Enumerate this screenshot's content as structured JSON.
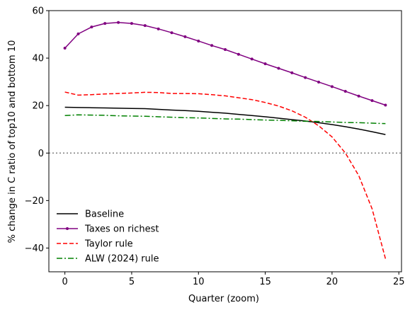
{
  "chart_data": {
    "type": "line",
    "title": "",
    "xlabel": "Quarter (zoom)",
    "ylabel": "% change in C ratio of top10 and bottom 10",
    "xlim": [
      -1.2,
      25.2
    ],
    "ylim": [
      -50,
      60
    ],
    "xticks": [
      0,
      5,
      10,
      15,
      20,
      25
    ],
    "yticks": [
      -40,
      -20,
      0,
      20,
      40,
      60
    ],
    "grid": false,
    "legend_position": "lower-left",
    "reference_line": {
      "y": 0,
      "style": "dotted",
      "color": "#808080"
    },
    "x": [
      0,
      1,
      2,
      3,
      4,
      5,
      6,
      7,
      8,
      9,
      10,
      11,
      12,
      13,
      14,
      15,
      16,
      17,
      18,
      19,
      20,
      21,
      22,
      23,
      24
    ],
    "series": [
      {
        "name": "Baseline",
        "color": "#000000",
        "style": "solid",
        "marker": "none",
        "values": [
          19.3,
          19.2,
          19.1,
          19.0,
          18.9,
          18.8,
          18.7,
          18.4,
          18.1,
          17.9,
          17.6,
          17.2,
          16.8,
          16.3,
          15.8,
          15.3,
          14.7,
          14.1,
          13.5,
          12.8,
          12.0,
          11.1,
          10.1,
          9.0,
          7.8
        ]
      },
      {
        "name": "Taxes on richest",
        "color": "#800080",
        "style": "solid",
        "marker": "dot",
        "values": [
          44.2,
          50.2,
          53.1,
          54.6,
          55.0,
          54.6,
          53.7,
          52.3,
          50.7,
          49.0,
          47.2,
          45.3,
          43.6,
          41.6,
          39.6,
          37.6,
          35.7,
          33.8,
          31.8,
          29.9,
          28.0,
          26.0,
          24.0,
          22.1,
          20.2
        ]
      },
      {
        "name": "Taylor rule",
        "color": "#ff0000",
        "style": "dashed",
        "marker": "none",
        "values": [
          25.7,
          24.4,
          24.6,
          24.9,
          25.1,
          25.3,
          25.6,
          25.5,
          25.1,
          25.1,
          25.0,
          24.6,
          24.1,
          23.3,
          22.5,
          21.3,
          19.8,
          17.8,
          15.1,
          11.5,
          6.8,
          0.0,
          -9.5,
          -23.5,
          -44.5
        ]
      },
      {
        "name": "ALW (2024) rule",
        "color": "#008000",
        "style": "dashdot",
        "marker": "none",
        "values": [
          15.8,
          16.1,
          16.0,
          15.9,
          15.7,
          15.6,
          15.5,
          15.3,
          15.1,
          14.9,
          14.8,
          14.6,
          14.4,
          14.3,
          14.1,
          13.9,
          13.8,
          13.6,
          13.4,
          13.3,
          13.1,
          12.9,
          12.8,
          12.6,
          12.4
        ]
      }
    ]
  }
}
